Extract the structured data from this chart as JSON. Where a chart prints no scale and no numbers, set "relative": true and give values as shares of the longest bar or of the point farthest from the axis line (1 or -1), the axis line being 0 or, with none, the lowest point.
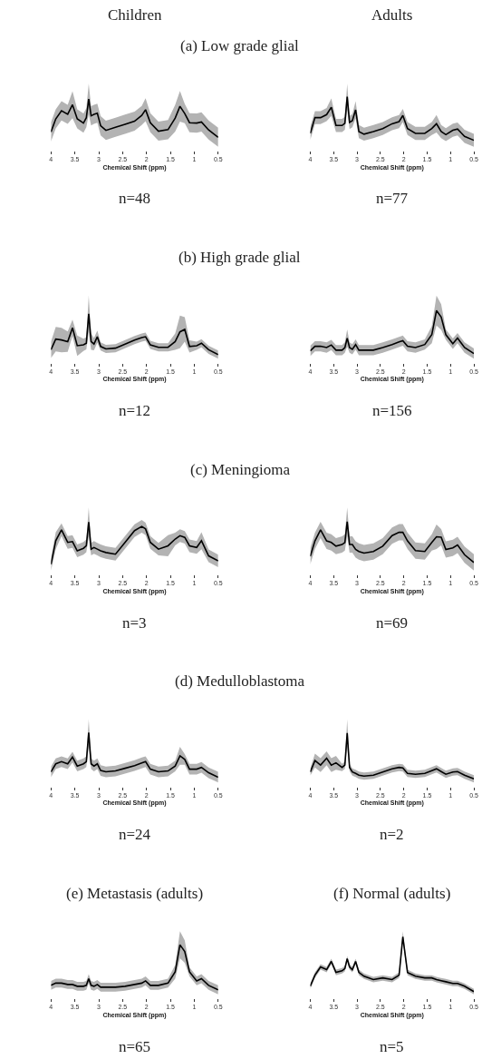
{
  "chart_data": [
    {
      "type": "line",
      "relative": true,
      "title": "(a) Low grade glial",
      "xlabel": "Chemical Shift (ppm)",
      "annotations": [
        "Children",
        "n=48"
      ],
      "xlim": [
        4,
        0.5
      ],
      "xticks": [
        4,
        3.5,
        3,
        2.5,
        2,
        1.5,
        1,
        0.5
      ],
      "x": [
        4,
        3.9,
        3.78,
        3.65,
        3.55,
        3.45,
        3.32,
        3.26,
        3.21,
        3.16,
        3.1,
        3.03,
        2.96,
        2.85,
        2.65,
        2.45,
        2.25,
        2.1,
        2.02,
        1.92,
        1.75,
        1.55,
        1.4,
        1.3,
        1.2,
        1.1,
        0.95,
        0.85,
        0.7,
        0.5
      ],
      "series": [
        {
          "color": "#000000",
          "values": [
            0.14,
            0.48,
            0.69,
            0.6,
            0.85,
            0.48,
            0.37,
            0.51,
            1.0,
            0.56,
            0.6,
            0.63,
            0.3,
            0.18,
            0.26,
            0.34,
            0.42,
            0.57,
            0.72,
            0.38,
            0.16,
            0.2,
            0.5,
            0.81,
            0.62,
            0.38,
            0.37,
            0.4,
            0.19,
            0
          ],
          "lower": [
            -0.11,
            0.23,
            0.44,
            0.35,
            0.5,
            0.23,
            0.12,
            0.26,
            0.6,
            0.31,
            0.35,
            0.38,
            0.05,
            -0.07,
            0.01,
            0.09,
            0.17,
            0.32,
            0.42,
            0.13,
            -0.09,
            -0.05,
            0.15,
            0.41,
            0.37,
            0.13,
            0.12,
            0.15,
            -0.06,
            -0.25
          ],
          "upper": [
            0.39,
            0.73,
            0.94,
            0.85,
            1.2,
            0.73,
            0.62,
            0.76,
            1.4,
            0.81,
            0.85,
            0.88,
            0.55,
            0.43,
            0.51,
            0.59,
            0.67,
            0.82,
            1.02,
            0.63,
            0.41,
            0.45,
            0.85,
            1.21,
            0.87,
            0.63,
            0.62,
            0.65,
            0.44,
            0.25
          ]
        }
      ]
    },
    {
      "type": "line",
      "relative": true,
      "xlabel": "Chemical Shift (ppm)",
      "annotations": [
        "Adults",
        "n=77"
      ],
      "xlim": [
        4,
        0.5
      ],
      "xticks": [
        4,
        3.5,
        3,
        2.5,
        2,
        1.5,
        1,
        0.5
      ],
      "x": [
        4,
        3.9,
        3.78,
        3.65,
        3.55,
        3.45,
        3.32,
        3.26,
        3.21,
        3.16,
        3.1,
        3.03,
        2.96,
        2.85,
        2.65,
        2.45,
        2.25,
        2.1,
        2.02,
        1.92,
        1.75,
        1.55,
        1.4,
        1.3,
        1.2,
        1.1,
        0.95,
        0.85,
        0.7,
        0.5
      ],
      "series": [
        {
          "color": "#000000",
          "values": [
            0.16,
            0.52,
            0.52,
            0.59,
            0.76,
            0.34,
            0.34,
            0.39,
            1.0,
            0.41,
            0.45,
            0.7,
            0.2,
            0.14,
            0.2,
            0.27,
            0.38,
            0.43,
            0.57,
            0.27,
            0.16,
            0.16,
            0.27,
            0.38,
            0.2,
            0.13,
            0.23,
            0.26,
            0.09,
            0
          ],
          "lower": [
            0.01,
            0.37,
            0.37,
            0.44,
            0.56,
            0.19,
            0.19,
            0.24,
            0.7,
            0.26,
            0.3,
            0.5,
            0.05,
            -0.01,
            0.05,
            0.12,
            0.23,
            0.28,
            0.42,
            0.12,
            0.01,
            0.01,
            0.12,
            0.18,
            0.05,
            -0.02,
            0.08,
            0.11,
            -0.06,
            -0.15
          ],
          "upper": [
            0.31,
            0.67,
            0.67,
            0.74,
            0.96,
            0.49,
            0.49,
            0.54,
            1.3,
            0.56,
            0.6,
            0.9,
            0.35,
            0.29,
            0.35,
            0.42,
            0.53,
            0.58,
            0.72,
            0.42,
            0.31,
            0.31,
            0.42,
            0.58,
            0.35,
            0.28,
            0.38,
            0.41,
            0.24,
            0.15
          ]
        }
      ]
    },
    {
      "type": "line",
      "relative": true,
      "title": "(b) High grade glial",
      "xlabel": "Chemical Shift (ppm)",
      "annotations": [
        "n=12"
      ],
      "xlim": [
        4,
        0.5
      ],
      "xticks": [
        4,
        3.5,
        3,
        2.5,
        2,
        1.5,
        1,
        0.5
      ],
      "x": [
        4,
        3.9,
        3.78,
        3.65,
        3.55,
        3.45,
        3.32,
        3.26,
        3.21,
        3.16,
        3.1,
        3.03,
        2.96,
        2.85,
        2.65,
        2.45,
        2.25,
        2.1,
        2.02,
        1.92,
        1.75,
        1.55,
        1.4,
        1.3,
        1.2,
        1.1,
        0.95,
        0.85,
        0.7,
        0.5
      ],
      "series": [
        {
          "color": "#000000",
          "values": [
            0.12,
            0.38,
            0.36,
            0.32,
            0.66,
            0.22,
            0.24,
            0.28,
            1.0,
            0.32,
            0.26,
            0.44,
            0.2,
            0.14,
            0.16,
            0.26,
            0.36,
            0.42,
            0.44,
            0.24,
            0.18,
            0.18,
            0.32,
            0.56,
            0.62,
            0.2,
            0.22,
            0.28,
            0.12,
            0
          ],
          "lower": [
            -0.08,
            0.08,
            0.06,
            0.07,
            0.46,
            -0.03,
            0.09,
            0.13,
            0.55,
            0.12,
            0.11,
            0.29,
            0.1,
            0.04,
            0.06,
            0.16,
            0.26,
            0.32,
            0.34,
            0.14,
            0.08,
            0.08,
            0.12,
            0.16,
            0.32,
            0.05,
            0.12,
            0.18,
            0.02,
            -0.1
          ],
          "upper": [
            0.32,
            0.68,
            0.66,
            0.57,
            0.86,
            0.47,
            0.39,
            0.43,
            1.45,
            0.52,
            0.41,
            0.59,
            0.3,
            0.24,
            0.26,
            0.36,
            0.46,
            0.52,
            0.54,
            0.34,
            0.28,
            0.28,
            0.52,
            0.96,
            0.92,
            0.35,
            0.32,
            0.38,
            0.22,
            0.1
          ]
        }
      ]
    },
    {
      "type": "line",
      "relative": true,
      "xlabel": "Chemical Shift (ppm)",
      "annotations": [
        "n=156"
      ],
      "xlim": [
        4,
        0.5
      ],
      "xticks": [
        4,
        3.5,
        3,
        2.5,
        2,
        1.5,
        1,
        0.5
      ],
      "x": [
        4,
        3.9,
        3.78,
        3.65,
        3.55,
        3.45,
        3.32,
        3.26,
        3.21,
        3.16,
        3.1,
        3.03,
        2.96,
        2.85,
        2.65,
        2.45,
        2.25,
        2.1,
        2.02,
        1.92,
        1.75,
        1.55,
        1.4,
        1.3,
        1.2,
        1.1,
        0.95,
        0.85,
        0.7,
        0.5
      ],
      "series": [
        {
          "color": "#000000",
          "values": [
            0.06,
            0.17,
            0.17,
            0.14,
            0.2,
            0.08,
            0.08,
            0.14,
            0.36,
            0.14,
            0.1,
            0.21,
            0.08,
            0.08,
            0.08,
            0.14,
            0.21,
            0.27,
            0.3,
            0.17,
            0.14,
            0.21,
            0.44,
            1.0,
            0.85,
            0.44,
            0.23,
            0.36,
            0.14,
            0
          ],
          "lower": [
            -0.06,
            0.05,
            0.05,
            0.02,
            0.08,
            -0.04,
            -0.04,
            0.02,
            0.16,
            0.02,
            -0.02,
            0.09,
            -0.04,
            -0.04,
            -0.04,
            0.02,
            0.09,
            0.15,
            0.18,
            0.05,
            0.02,
            0.09,
            0.24,
            0.65,
            0.55,
            0.32,
            0.11,
            0.24,
            0.02,
            -0.12
          ],
          "upper": [
            0.18,
            0.29,
            0.29,
            0.26,
            0.32,
            0.2,
            0.2,
            0.26,
            0.56,
            0.26,
            0.22,
            0.33,
            0.2,
            0.2,
            0.2,
            0.26,
            0.33,
            0.39,
            0.42,
            0.29,
            0.26,
            0.33,
            0.64,
            1.35,
            1.15,
            0.56,
            0.35,
            0.48,
            0.26,
            0.12
          ]
        }
      ]
    },
    {
      "type": "line",
      "relative": true,
      "title": "(c) Meningioma",
      "xlabel": "Chemical Shift (ppm)",
      "annotations": [
        "n=3"
      ],
      "xlim": [
        4,
        0.5
      ],
      "xticks": [
        4,
        3.5,
        3,
        2.5,
        2,
        1.5,
        1,
        0.5
      ],
      "x": [
        4,
        3.9,
        3.78,
        3.65,
        3.55,
        3.45,
        3.32,
        3.26,
        3.21,
        3.16,
        3.1,
        3.03,
        2.96,
        2.85,
        2.65,
        2.45,
        2.25,
        2.1,
        2.02,
        1.92,
        1.75,
        1.55,
        1.4,
        1.3,
        1.2,
        1.1,
        0.95,
        0.85,
        0.7,
        0.5
      ],
      "series": [
        {
          "color": "#000000",
          "values": [
            0,
            0.56,
            0.82,
            0.52,
            0.54,
            0.32,
            0.38,
            0.44,
            1.0,
            0.36,
            0.4,
            0.36,
            0.32,
            0.28,
            0.24,
            0.52,
            0.8,
            0.9,
            0.84,
            0.52,
            0.36,
            0.44,
            0.6,
            0.68,
            0.64,
            0.44,
            0.4,
            0.56,
            0.2,
            0.08
          ],
          "lower": [
            -0.15,
            0.36,
            0.67,
            0.37,
            0.39,
            0.17,
            0.23,
            0.29,
            0.65,
            0.21,
            0.25,
            0.21,
            0.17,
            0.13,
            0.09,
            0.37,
            0.65,
            0.75,
            0.69,
            0.37,
            0.21,
            0.19,
            0.45,
            0.53,
            0.49,
            0.29,
            0.25,
            0.36,
            0.05,
            -0.07
          ],
          "upper": [
            0.15,
            0.76,
            0.97,
            0.67,
            0.69,
            0.47,
            0.53,
            0.59,
            1.35,
            0.51,
            0.55,
            0.51,
            0.47,
            0.43,
            0.39,
            0.67,
            0.95,
            1.05,
            0.99,
            0.67,
            0.51,
            0.69,
            0.75,
            0.83,
            0.79,
            0.59,
            0.55,
            0.76,
            0.35,
            0.23
          ]
        }
      ]
    },
    {
      "type": "line",
      "relative": true,
      "xlabel": "Chemical Shift (ppm)",
      "annotations": [
        "n=69"
      ],
      "xlim": [
        4,
        0.5
      ],
      "xticks": [
        4,
        3.5,
        3,
        2.5,
        2,
        1.5,
        1,
        0.5
      ],
      "x": [
        4,
        3.9,
        3.78,
        3.65,
        3.55,
        3.45,
        3.32,
        3.26,
        3.21,
        3.16,
        3.1,
        3.03,
        2.96,
        2.85,
        2.65,
        2.45,
        2.25,
        2.1,
        2.02,
        1.92,
        1.75,
        1.55,
        1.4,
        1.3,
        1.2,
        1.1,
        0.95,
        0.85,
        0.7,
        0.5
      ],
      "series": [
        {
          "color": "#000000",
          "values": [
            0.15,
            0.53,
            0.8,
            0.53,
            0.49,
            0.4,
            0.44,
            0.49,
            1.0,
            0.44,
            0.44,
            0.32,
            0.27,
            0.23,
            0.27,
            0.4,
            0.66,
            0.74,
            0.74,
            0.53,
            0.29,
            0.27,
            0.49,
            0.63,
            0.62,
            0.32,
            0.36,
            0.43,
            0.19,
            0
          ],
          "lower": [
            -0.05,
            0.33,
            0.6,
            0.33,
            0.29,
            0.2,
            0.24,
            0.29,
            0.65,
            0.24,
            0.24,
            0.12,
            0.07,
            0.03,
            0.07,
            0.2,
            0.46,
            0.54,
            0.54,
            0.33,
            0.09,
            0.07,
            0.29,
            0.33,
            0.42,
            0.12,
            0.16,
            0.23,
            -0.01,
            -0.2
          ],
          "upper": [
            0.35,
            0.73,
            1.0,
            0.73,
            0.69,
            0.6,
            0.64,
            0.69,
            1.35,
            0.64,
            0.64,
            0.52,
            0.47,
            0.43,
            0.47,
            0.6,
            0.86,
            0.94,
            0.94,
            0.73,
            0.49,
            0.47,
            0.69,
            0.93,
            0.82,
            0.52,
            0.56,
            0.63,
            0.39,
            0.2
          ]
        }
      ]
    },
    {
      "type": "line",
      "relative": true,
      "title": "(d) Medulloblastoma",
      "xlabel": "Chemical Shift (ppm)",
      "annotations": [
        "n=24"
      ],
      "xlim": [
        4,
        0.5
      ],
      "xticks": [
        4,
        3.5,
        3,
        2.5,
        2,
        1.5,
        1,
        0.5
      ],
      "x": [
        4,
        3.9,
        3.78,
        3.65,
        3.55,
        3.45,
        3.32,
        3.26,
        3.21,
        3.16,
        3.1,
        3.03,
        2.96,
        2.85,
        2.65,
        2.45,
        2.25,
        2.1,
        2.02,
        1.92,
        1.75,
        1.55,
        1.4,
        1.3,
        1.2,
        1.1,
        0.95,
        0.85,
        0.7,
        0.5
      ],
      "series": [
        {
          "color": "#000000",
          "values": [
            0.12,
            0.3,
            0.35,
            0.3,
            0.45,
            0.25,
            0.3,
            0.35,
            1.0,
            0.3,
            0.25,
            0.3,
            0.15,
            0.12,
            0.14,
            0.2,
            0.26,
            0.32,
            0.35,
            0.18,
            0.12,
            0.14,
            0.25,
            0.48,
            0.4,
            0.18,
            0.18,
            0.22,
            0.1,
            0
          ],
          "lower": [
            0,
            0.18,
            0.23,
            0.18,
            0.33,
            0.13,
            0.18,
            0.23,
            0.7,
            0.18,
            0.13,
            0.18,
            0.03,
            0,
            0.02,
            0.08,
            0.14,
            0.2,
            0.23,
            0.06,
            0,
            0.02,
            0.13,
            0.28,
            0.28,
            0.06,
            0.06,
            0.1,
            -0.02,
            -0.12
          ],
          "upper": [
            0.24,
            0.42,
            0.47,
            0.42,
            0.57,
            0.37,
            0.42,
            0.47,
            1.3,
            0.42,
            0.37,
            0.42,
            0.27,
            0.24,
            0.26,
            0.32,
            0.38,
            0.44,
            0.47,
            0.3,
            0.24,
            0.26,
            0.37,
            0.68,
            0.52,
            0.3,
            0.3,
            0.34,
            0.22,
            0.12
          ]
        }
      ]
    },
    {
      "type": "line",
      "relative": true,
      "xlabel": "Chemical Shift (ppm)",
      "annotations": [
        "n=2"
      ],
      "xlim": [
        4,
        0.5
      ],
      "xticks": [
        4,
        3.5,
        3,
        2.5,
        2,
        1.5,
        1,
        0.5
      ],
      "x": [
        4,
        3.9,
        3.78,
        3.65,
        3.55,
        3.45,
        3.32,
        3.26,
        3.21,
        3.16,
        3.1,
        3.03,
        2.96,
        2.85,
        2.65,
        2.45,
        2.25,
        2.1,
        2.02,
        1.92,
        1.75,
        1.55,
        1.4,
        1.3,
        1.2,
        1.1,
        0.95,
        0.85,
        0.7,
        0.5
      ],
      "series": [
        {
          "color": "#000000",
          "values": [
            0.15,
            0.4,
            0.3,
            0.45,
            0.3,
            0.35,
            0.25,
            0.3,
            1.0,
            0.25,
            0.15,
            0.12,
            0.08,
            0.06,
            0.08,
            0.15,
            0.22,
            0.25,
            0.24,
            0.12,
            0.1,
            0.12,
            0.18,
            0.22,
            0.16,
            0.1,
            0.15,
            0.16,
            0.08,
            0
          ],
          "lower": [
            0.07,
            0.25,
            0.15,
            0.3,
            0.15,
            0.2,
            0.17,
            0.22,
            0.7,
            0.17,
            0.07,
            0.04,
            0,
            -0.02,
            0,
            0.07,
            0.14,
            0.17,
            0.16,
            0.04,
            0.02,
            0.04,
            0.1,
            0.14,
            0.08,
            0.02,
            0.07,
            0.08,
            0,
            -0.08
          ],
          "upper": [
            0.23,
            0.55,
            0.45,
            0.6,
            0.45,
            0.5,
            0.33,
            0.38,
            1.3,
            0.33,
            0.23,
            0.2,
            0.16,
            0.14,
            0.16,
            0.23,
            0.3,
            0.33,
            0.32,
            0.2,
            0.18,
            0.2,
            0.26,
            0.3,
            0.24,
            0.18,
            0.23,
            0.24,
            0.16,
            0.08
          ]
        }
      ]
    },
    {
      "type": "line",
      "relative": true,
      "title": "(e) Metastasis (adults)",
      "xlabel": "Chemical Shift (ppm)",
      "annotations": [
        "n=65"
      ],
      "xlim": [
        4,
        0.5
      ],
      "xticks": [
        4,
        3.5,
        3,
        2.5,
        2,
        1.5,
        1,
        0.5
      ],
      "x": [
        4,
        3.9,
        3.78,
        3.65,
        3.55,
        3.45,
        3.32,
        3.26,
        3.21,
        3.16,
        3.1,
        3.03,
        2.96,
        2.85,
        2.65,
        2.45,
        2.25,
        2.1,
        2.02,
        1.92,
        1.75,
        1.55,
        1.4,
        1.3,
        1.2,
        1.1,
        0.95,
        0.85,
        0.7,
        0.5
      ],
      "series": [
        {
          "color": "#000000",
          "values": [
            0.1,
            0.15,
            0.15,
            0.12,
            0.12,
            0.08,
            0.08,
            0.1,
            0.25,
            0.1,
            0.08,
            0.12,
            0.06,
            0.06,
            0.06,
            0.08,
            0.12,
            0.15,
            0.2,
            0.1,
            0.1,
            0.15,
            0.4,
            1.0,
            0.85,
            0.4,
            0.2,
            0.25,
            0.1,
            0
          ],
          "lower": [
            0,
            0.05,
            0.05,
            0.02,
            0.02,
            -0.02,
            -0.02,
            0,
            0.15,
            0,
            -0.02,
            0.02,
            -0.04,
            -0.04,
            -0.04,
            -0.02,
            0.02,
            0.05,
            0.1,
            0,
            0,
            0.05,
            0.25,
            0.7,
            0.6,
            0.3,
            0.1,
            0.15,
            0,
            -0.1
          ],
          "upper": [
            0.2,
            0.25,
            0.25,
            0.22,
            0.22,
            0.18,
            0.18,
            0.2,
            0.35,
            0.2,
            0.18,
            0.22,
            0.16,
            0.16,
            0.16,
            0.18,
            0.22,
            0.25,
            0.3,
            0.2,
            0.2,
            0.25,
            0.55,
            1.3,
            1.1,
            0.5,
            0.3,
            0.35,
            0.2,
            0.1
          ]
        }
      ]
    },
    {
      "type": "line",
      "relative": true,
      "title": "(f) Normal (adults)",
      "xlabel": "Chemical Shift (ppm)",
      "annotations": [
        "n=5"
      ],
      "xlim": [
        4,
        0.5
      ],
      "xticks": [
        4,
        3.5,
        3,
        2.5,
        2,
        1.5,
        1,
        0.5
      ],
      "x": [
        4,
        3.9,
        3.78,
        3.65,
        3.55,
        3.45,
        3.32,
        3.26,
        3.21,
        3.16,
        3.1,
        3.03,
        2.96,
        2.85,
        2.65,
        2.45,
        2.25,
        2.1,
        2.02,
        1.92,
        1.75,
        1.55,
        1.4,
        1.3,
        1.2,
        1.1,
        0.95,
        0.85,
        0.7,
        0.5
      ],
      "series": [
        {
          "color": "#000000",
          "values": [
            0.1,
            0.3,
            0.45,
            0.4,
            0.55,
            0.35,
            0.38,
            0.42,
            0.6,
            0.45,
            0.4,
            0.55,
            0.35,
            0.28,
            0.22,
            0.25,
            0.22,
            0.3,
            1.0,
            0.35,
            0.28,
            0.25,
            0.25,
            0.22,
            0.2,
            0.18,
            0.15,
            0.15,
            0.1,
            0
          ],
          "lower": [
            0.05,
            0.25,
            0.4,
            0.35,
            0.5,
            0.3,
            0.33,
            0.37,
            0.55,
            0.4,
            0.35,
            0.5,
            0.3,
            0.23,
            0.17,
            0.2,
            0.17,
            0.25,
            0.9,
            0.3,
            0.23,
            0.2,
            0.2,
            0.17,
            0.15,
            0.13,
            0.1,
            0.1,
            0.05,
            -0.05
          ],
          "upper": [
            0.15,
            0.35,
            0.5,
            0.45,
            0.6,
            0.4,
            0.43,
            0.47,
            0.65,
            0.5,
            0.45,
            0.6,
            0.4,
            0.33,
            0.27,
            0.3,
            0.27,
            0.35,
            1.1,
            0.4,
            0.33,
            0.3,
            0.3,
            0.27,
            0.25,
            0.23,
            0.2,
            0.2,
            0.15,
            0.05
          ]
        }
      ]
    }
  ]
}
